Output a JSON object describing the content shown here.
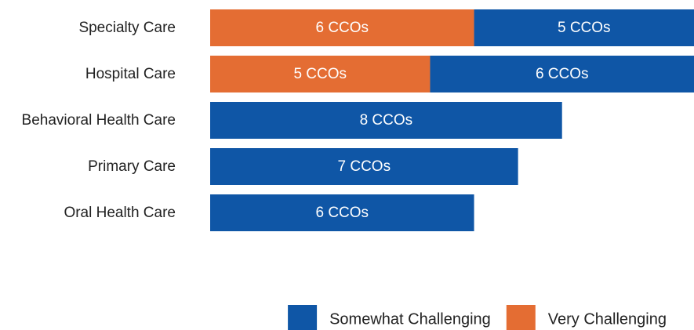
{
  "chart_data": {
    "type": "bar",
    "orientation": "horizontal",
    "stacked": true,
    "categories": [
      "Specialty Care",
      "Hospital Care",
      "Behavioral Health Care",
      "Primary Care",
      "Oral Health Care"
    ],
    "series": [
      {
        "name": "Very Challenging",
        "color": "#E46D33",
        "values": [
          6,
          5,
          0,
          0,
          0
        ],
        "labels": [
          "6 CCOs",
          "5 CCOs",
          "",
          "",
          ""
        ]
      },
      {
        "name": "Somewhat Challenging",
        "color": "#0F56A6",
        "values": [
          5,
          6,
          8,
          7,
          6
        ],
        "labels": [
          "5 CCOs",
          "6 CCOs",
          "8 CCOs",
          "7 CCOs",
          "6 CCOs"
        ]
      }
    ],
    "xlim": [
      0,
      11
    ],
    "grid": false,
    "legend": {
      "position": "bottom-right",
      "items": [
        {
          "label": "Somewhat Challenging",
          "color": "#0F56A6"
        },
        {
          "label": "Very Challenging",
          "color": "#E46D33"
        }
      ]
    }
  }
}
